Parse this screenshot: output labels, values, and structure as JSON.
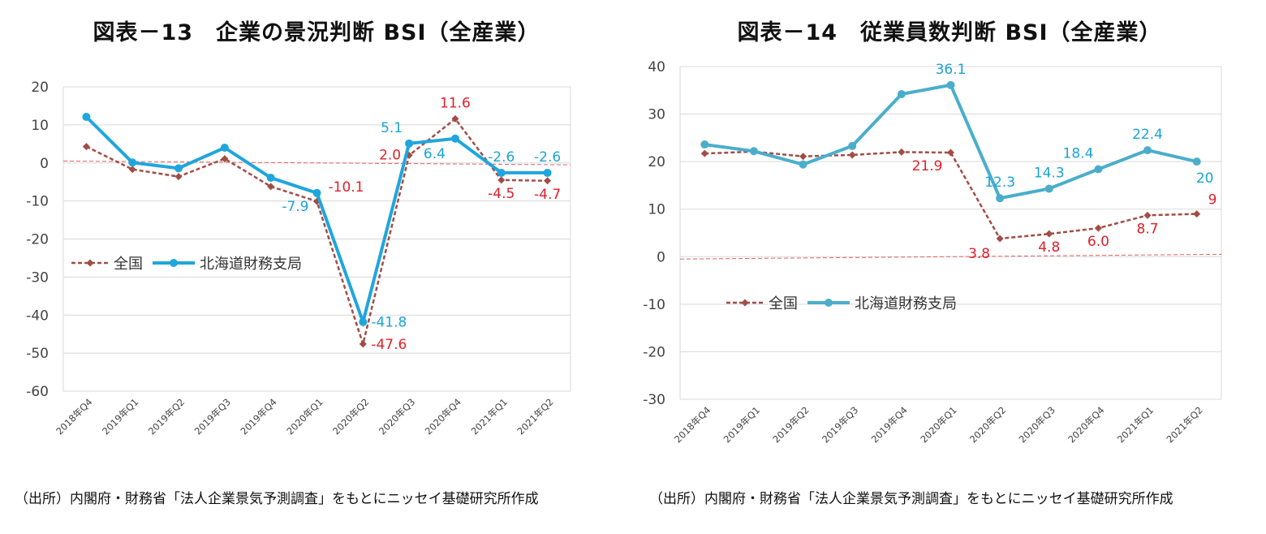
{
  "chart_data": [
    {
      "type": "line",
      "title": "図表－13　企業の景況判断 BSI（全産業）",
      "source": "（出所）内閣府・財務省「法人企業景気予測調査」をもとにニッセイ基礎研究所作成",
      "categories": [
        "2018年Q4",
        "2019年Q1",
        "2019年Q2",
        "2019年Q3",
        "2019年Q4",
        "2020年Q1",
        "2020年Q2",
        "2020年Q3",
        "2020年Q4",
        "2021年Q1",
        "2021年Q2"
      ],
      "ylim": [
        -60,
        20
      ],
      "yticks": [
        20,
        10,
        0,
        -10,
        -20,
        -30,
        -40,
        -50,
        -60
      ],
      "xlabel": "",
      "ylabel": "",
      "legend": "middle-left",
      "series": [
        {
          "name": "全国",
          "style": "dashed-diamond",
          "color": "#a14d45",
          "values": [
            4.3,
            -1.7,
            -3.6,
            1.1,
            -6.2,
            -10.1,
            -47.6,
            2.0,
            11.6,
            -4.5,
            -4.7
          ]
        },
        {
          "name": "北海道財務支局",
          "style": "solid-circle",
          "color": "#1fa6dc",
          "values": [
            12.1,
            0.1,
            -1.4,
            4.0,
            -3.9,
            -7.9,
            -41.8,
            5.1,
            6.4,
            -2.6,
            -2.6
          ]
        }
      ],
      "annotations": [
        {
          "series": 0,
          "index": 5,
          "text": "-10.1",
          "color": "#e0202a",
          "pos": "upper-right"
        },
        {
          "series": 0,
          "index": 6,
          "text": "-47.6",
          "color": "#e0202a",
          "pos": "right"
        },
        {
          "series": 0,
          "index": 7,
          "text": "2.0",
          "color": "#e0202a",
          "pos": "left"
        },
        {
          "series": 0,
          "index": 8,
          "text": "11.6",
          "color": "#e0202a",
          "pos": "above"
        },
        {
          "series": 0,
          "index": 9,
          "text": "-4.5",
          "color": "#e0202a",
          "pos": "below"
        },
        {
          "series": 0,
          "index": 10,
          "text": "-4.7",
          "color": "#e0202a",
          "pos": "below"
        },
        {
          "series": 1,
          "index": 5,
          "text": "-7.9",
          "color": "#1aa3d8",
          "pos": "lower-left"
        },
        {
          "series": 1,
          "index": 6,
          "text": "-41.8",
          "color": "#1aa3d8",
          "pos": "right"
        },
        {
          "series": 1,
          "index": 7,
          "text": "5.1",
          "color": "#1aa3d8",
          "pos": "upper-left"
        },
        {
          "series": 1,
          "index": 8,
          "text": "6.4",
          "color": "#1aa3d8",
          "pos": "below-left"
        },
        {
          "series": 1,
          "index": 9,
          "text": "-2.6",
          "color": "#1aa3d8",
          "pos": "above"
        },
        {
          "series": 1,
          "index": 10,
          "text": "-2.6",
          "color": "#1aa3d8",
          "pos": "above"
        }
      ]
    },
    {
      "type": "line",
      "title": "図表－14　従業員数判断 BSI（全産業）",
      "source": "（出所）内閣府・財務省「法人企業景気予測調査」をもとにニッセイ基礎研究所作成",
      "categories": [
        "2018年Q4",
        "2019年Q1",
        "2019年Q2",
        "2019年Q3",
        "2019年Q4",
        "2020年Q1",
        "2020年Q2",
        "2020年Q3",
        "2020年Q4",
        "2021年Q1",
        "2021年Q2"
      ],
      "ylim": [
        -30,
        40
      ],
      "yticks": [
        40,
        30,
        20,
        10,
        0,
        -10,
        -20,
        -30
      ],
      "xlabel": "",
      "ylabel": "",
      "legend": "middle-left",
      "series": [
        {
          "name": "全国",
          "style": "dashed-diamond",
          "color": "#a14d45",
          "values": [
            21.7,
            22.1,
            21.1,
            21.4,
            22.0,
            21.9,
            3.8,
            4.8,
            6.0,
            8.7,
            9.0
          ]
        },
        {
          "name": "北海道財務支局",
          "style": "solid-circle",
          "color": "#4aaecb",
          "values": [
            23.6,
            22.2,
            19.4,
            23.3,
            34.2,
            36.1,
            12.3,
            14.3,
            18.4,
            22.4,
            20.0
          ]
        }
      ],
      "annotations": [
        {
          "series": 0,
          "index": 5,
          "text": "21.9",
          "color": "#e0202a",
          "pos": "lower-left"
        },
        {
          "series": 0,
          "index": 6,
          "text": "3.8",
          "color": "#e0202a",
          "pos": "below-left"
        },
        {
          "series": 0,
          "index": 7,
          "text": "4.8",
          "color": "#e0202a",
          "pos": "below"
        },
        {
          "series": 0,
          "index": 8,
          "text": "6.0",
          "color": "#e0202a",
          "pos": "below"
        },
        {
          "series": 0,
          "index": 9,
          "text": "8.7",
          "color": "#e0202a",
          "pos": "below"
        },
        {
          "series": 0,
          "index": 10,
          "text": "9",
          "color": "#e0202a",
          "pos": "upper-right"
        },
        {
          "series": 1,
          "index": 5,
          "text": "36.1",
          "color": "#1aa3d8",
          "pos": "above"
        },
        {
          "series": 1,
          "index": 6,
          "text": "12.3",
          "color": "#1aa3d8",
          "pos": "above"
        },
        {
          "series": 1,
          "index": 7,
          "text": "14.3",
          "color": "#1aa3d8",
          "pos": "above"
        },
        {
          "series": 1,
          "index": 8,
          "text": "18.4",
          "color": "#1aa3d8",
          "pos": "above-left"
        },
        {
          "series": 1,
          "index": 9,
          "text": "22.4",
          "color": "#1aa3d8",
          "pos": "above"
        },
        {
          "series": 1,
          "index": 10,
          "text": "20",
          "color": "#1aa3d8",
          "pos": "below-right"
        }
      ]
    }
  ]
}
